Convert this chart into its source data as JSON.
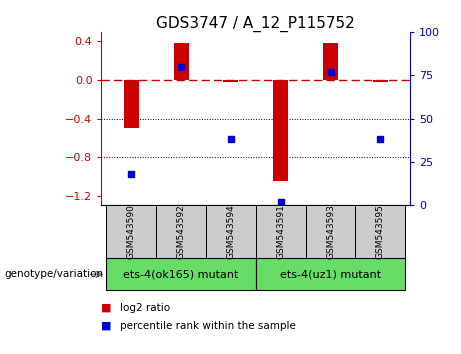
{
  "title": "GDS3747 / A_12_P115752",
  "samples": [
    "GSM543590",
    "GSM543592",
    "GSM543594",
    "GSM543591",
    "GSM543593",
    "GSM543595"
  ],
  "log2_ratios": [
    -0.5,
    0.38,
    -0.02,
    -1.05,
    0.38,
    -0.02
  ],
  "percentile_ranks": [
    18,
    80,
    38,
    2,
    77,
    38
  ],
  "groups": [
    {
      "label": "ets-4(ok165) mutant",
      "indices": [
        0,
        1,
        2
      ],
      "color": "#66DD66"
    },
    {
      "label": "ets-4(uz1) mutant",
      "indices": [
        3,
        4,
        5
      ],
      "color": "#66DD66"
    }
  ],
  "bar_color": "#CC0000",
  "dot_color": "#0000CC",
  "dashed_line_color": "#CC0000",
  "ylim_left": [
    -1.3,
    0.5
  ],
  "ylim_right": [
    0,
    100
  ],
  "yticks_left": [
    -1.2,
    -0.8,
    -0.4,
    0.0,
    0.4
  ],
  "yticks_right": [
    0,
    25,
    50,
    75,
    100
  ],
  "title_fontsize": 11,
  "tick_label_fontsize": 8,
  "axis_label_color_left": "#CC0000",
  "axis_label_color_right": "#0000CC",
  "group_label_fontsize": 8,
  "genotype_label": "genotype/variation",
  "legend_log2": "log2 ratio",
  "legend_percentile": "percentile rank within the sample",
  "sample_box_color": "#CCCCCC",
  "bar_width": 0.3
}
